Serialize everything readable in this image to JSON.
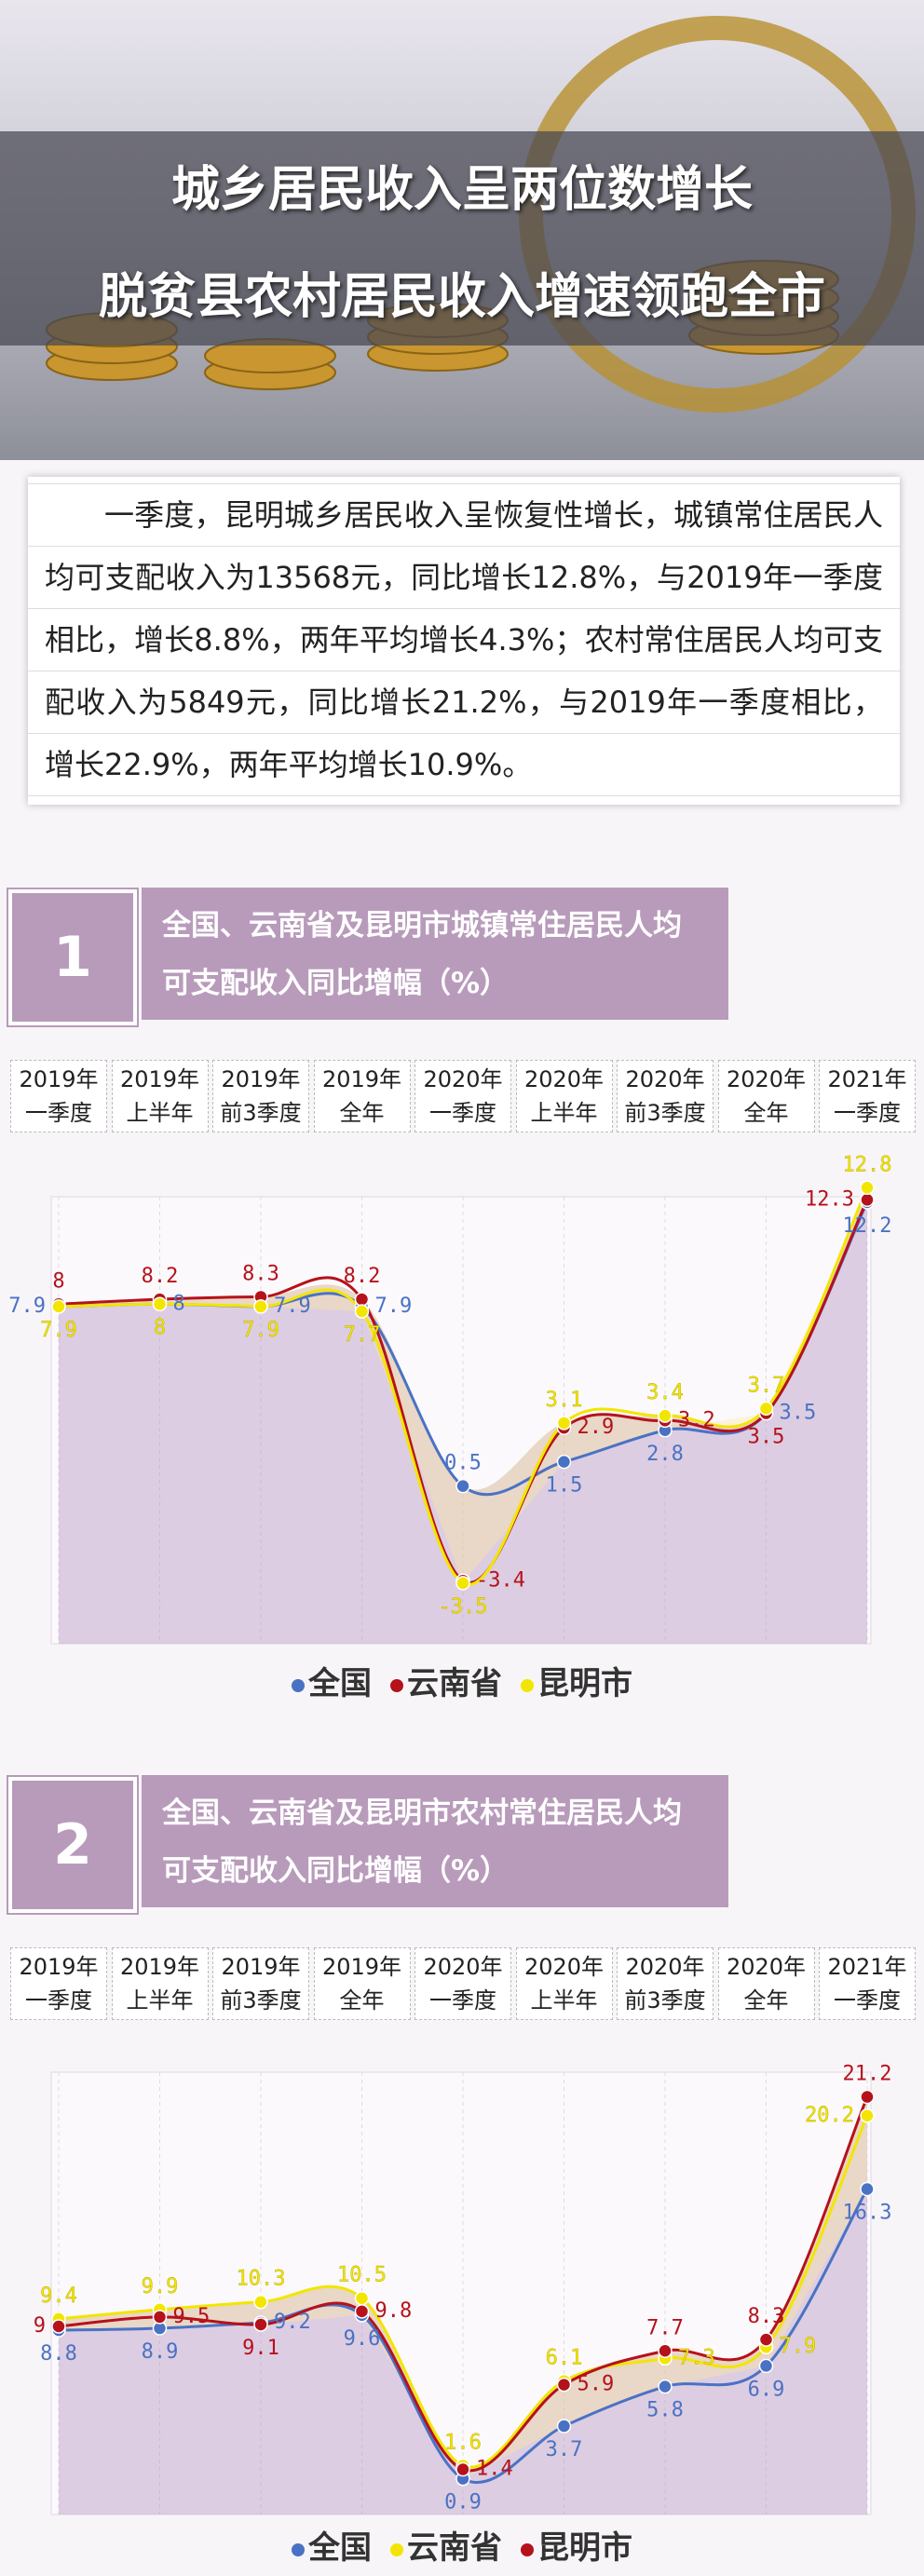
{
  "header": {
    "title_lines": [
      "城乡居民收入呈两位数增长",
      "脱贫县农村居民收入增速领跑全市"
    ]
  },
  "intro": "一季度，昆明城乡居民收入呈恢复性增长，城镇常住居民人均可支配收入为13568元，同比增长12.8%，与2019年一季度相比，增长8.8%，两年平均增长4.3%；农村常住居民人均可支配收入为5849元，同比增长21.2%，与2019年一季度相比，增长22.9%，两年平均增长10.9%。",
  "chart_data": [
    {
      "type": "line",
      "number": "1",
      "title": "全国、云南省及昆明市城镇常住居民人均可支配收入同比增幅（%）",
      "categories": [
        "2019年\n一季度",
        "2019年\n上半年",
        "2019年\n前3季度",
        "2019年\n全年",
        "2020年\n一季度",
        "2020年\n上半年",
        "2020年\n前3季度",
        "2020年\n全年",
        "2021年\n一季度"
      ],
      "ylim": [
        -6,
        14
      ],
      "grid": true,
      "series": [
        {
          "name": "全国",
          "color": "#4a72c4",
          "values": [
            7.9,
            8,
            7.9,
            7.9,
            0.5,
            1.5,
            2.8,
            3.5,
            12.2
          ]
        },
        {
          "name": "云南省",
          "color": "#b5121b",
          "values": [
            8,
            8.2,
            8.3,
            8.2,
            -3.4,
            2.9,
            3.2,
            3.5,
            12.3
          ]
        },
        {
          "name": "昆明市",
          "color": "#f2e600",
          "values": [
            7.9,
            8,
            7.9,
            7.7,
            -3.5,
            3.1,
            3.4,
            3.7,
            12.8
          ]
        }
      ]
    },
    {
      "type": "line",
      "number": "2",
      "title": "全国、云南省及昆明市农村常住居民人均可支配收入同比增幅（%）",
      "categories": [
        "2019年\n一季度",
        "2019年\n上半年",
        "2019年\n前3季度",
        "2019年\n全年",
        "2020年\n一季度",
        "2020年\n上半年",
        "2020年\n前3季度",
        "2020年\n全年",
        "2021年\n一季度"
      ],
      "ylim": [
        -1,
        24
      ],
      "grid": true,
      "series": [
        {
          "name": "全国",
          "color": "#4a72c4",
          "values": [
            8.8,
            8.9,
            9.2,
            9.6,
            0.9,
            3.7,
            5.8,
            6.9,
            16.3
          ]
        },
        {
          "name": "云南省",
          "color": "#f2e600",
          "values": [
            9.4,
            9.9,
            10.3,
            10.5,
            1.6,
            6.1,
            7.3,
            7.9,
            20.2
          ]
        },
        {
          "name": "昆明市",
          "color": "#b5121b",
          "values": [
            9,
            9.5,
            9.1,
            9.8,
            1.4,
            5.9,
            7.7,
            8.3,
            21.2
          ]
        }
      ]
    }
  ]
}
